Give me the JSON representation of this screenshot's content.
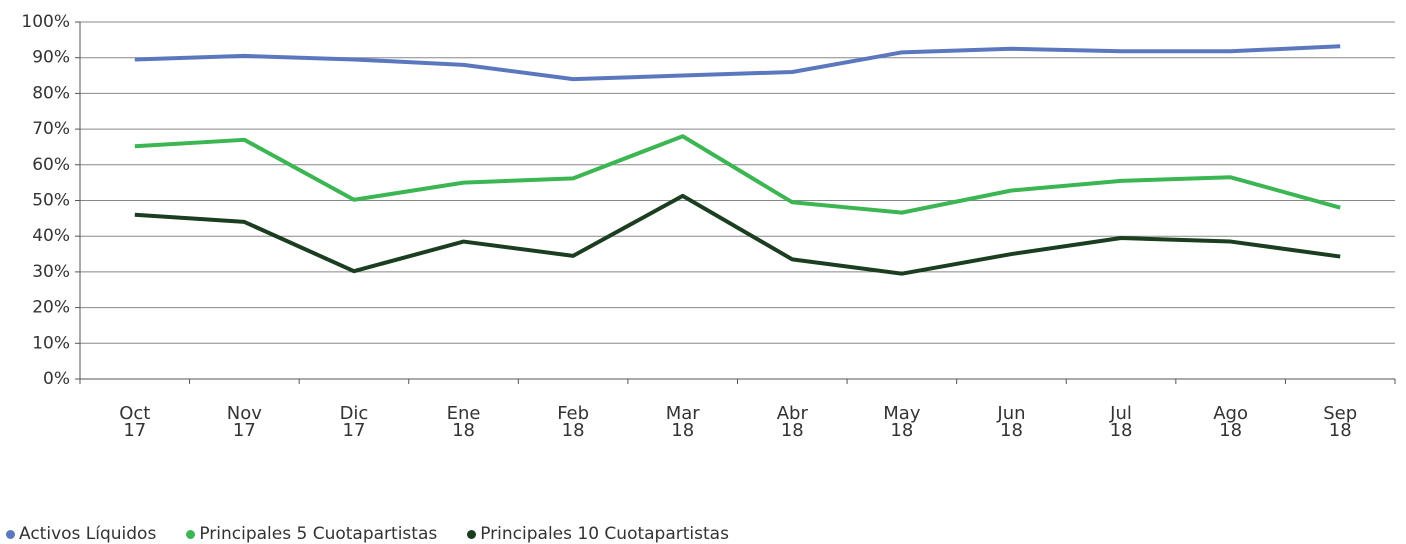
{
  "chart_data": {
    "type": "line",
    "categories": [
      "Oct 17",
      "Nov 17",
      "Dic 17",
      "Ene 18",
      "Feb 18",
      "Mar 18",
      "Abr 18",
      "May 18",
      "Jun 18",
      "Jul 18",
      "Ago 18",
      "Sep 18"
    ],
    "series": [
      {
        "name": "Activos Líquidos",
        "color": "#5b78bf",
        "values": [
          89.5,
          90.5,
          89.5,
          88,
          84,
          85,
          86,
          91.5,
          92.5,
          91.8,
          91.8,
          93.2
        ]
      },
      {
        "name": "Principales 5 Cuotapartistas",
        "color": "#3cb553",
        "values": [
          65.2,
          67,
          50.2,
          55,
          56.2,
          68,
          49.5,
          46.6,
          52.8,
          55.5,
          56.5,
          48
        ]
      },
      {
        "name": "Principales 10 Cuotapartistas",
        "color": "#1b3d20",
        "values": [
          46,
          44,
          30.2,
          38.5,
          34.5,
          51.3,
          33.5,
          29.5,
          35,
          39.5,
          38.5,
          34.3
        ]
      }
    ],
    "ylim": [
      0,
      100
    ],
    "yticks": [
      {
        "value": 0,
        "label": "0%"
      },
      {
        "value": 10,
        "label": "10%"
      },
      {
        "value": 20,
        "label": "20%"
      },
      {
        "value": 30,
        "label": "30%"
      },
      {
        "value": 40,
        "label": "40%"
      },
      {
        "value": 50,
        "label": "50%"
      },
      {
        "value": 60,
        "label": "60%"
      },
      {
        "value": 70,
        "label": "70%"
      },
      {
        "value": 80,
        "label": "80%"
      },
      {
        "value": 90,
        "label": "90%"
      },
      {
        "value": 100,
        "label": "100%"
      }
    ],
    "grid": true
  }
}
